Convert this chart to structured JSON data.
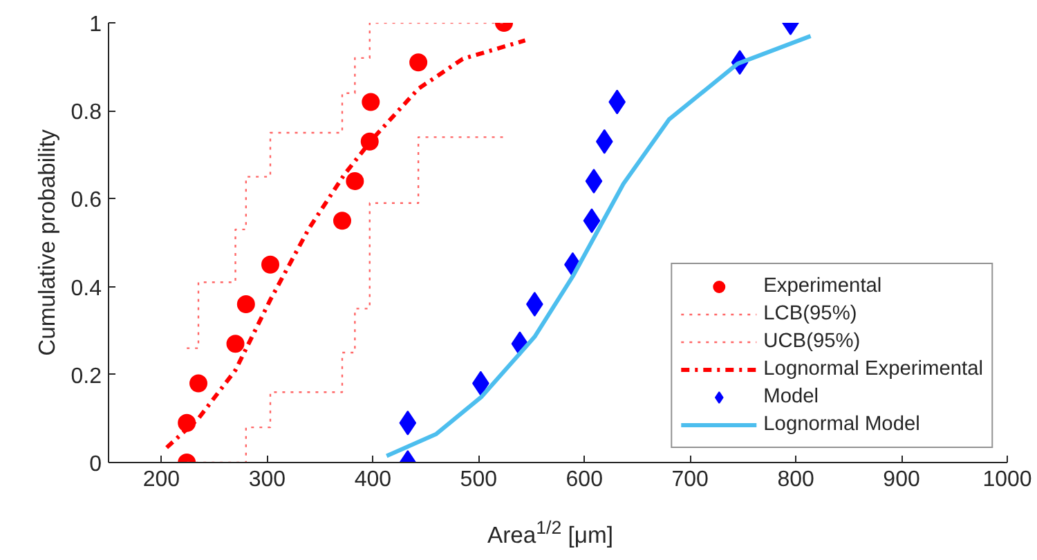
{
  "chart_data": {
    "type": "scatter",
    "xlabel": "Area$^{1/2}$ [μm]",
    "ylabel": "Cumulative probability",
    "xlim": [
      150,
      1000
    ],
    "xticks": [
      200,
      300,
      400,
      500,
      600,
      700,
      800,
      900,
      1000
    ],
    "ylim": [
      0,
      1
    ],
    "yticks": [
      0,
      0.2,
      0.4,
      0.6,
      0.8,
      1
    ],
    "grid": false,
    "legend": "bottom right",
    "series": [
      {
        "name": "Experimental",
        "marker": "circle",
        "color": "#ff0000",
        "x": [
          224,
          224,
          235,
          270,
          280,
          303,
          371,
          383,
          397,
          398,
          443,
          524
        ],
        "values": [
          0,
          0.09,
          0.18,
          0.27,
          0.36,
          0.45,
          0.55,
          0.64,
          0.73,
          0.82,
          0.91,
          1
        ]
      },
      {
        "name": "LCB(95%)",
        "type": "step",
        "line_style": "dotted",
        "color": "#ff6666",
        "x": [
          224,
          280,
          303,
          371,
          383,
          397,
          443,
          524
        ],
        "values": [
          0,
          0.08,
          0.16,
          0.25,
          0.35,
          0.59,
          0.74,
          0.74
        ]
      },
      {
        "name": "UCB(95%)",
        "type": "step",
        "line_style": "dotted",
        "color": "#ff6666",
        "x": [
          224,
          235,
          270,
          280,
          303,
          371,
          383,
          397,
          524
        ],
        "values": [
          0.26,
          0.41,
          0.53,
          0.65,
          0.75,
          0.84,
          0.92,
          1,
          1
        ]
      },
      {
        "name": "Lognormal Experimental",
        "type": "line",
        "line_style": "dashdot",
        "color": "#ff0000",
        "x": [
          205,
          235,
          270,
          303,
          339,
          373,
          399,
          443,
          485,
          544
        ],
        "values": [
          0.034,
          0.1,
          0.21,
          0.37,
          0.53,
          0.655,
          0.734,
          0.85,
          0.918,
          0.96
        ]
      },
      {
        "name": "Model",
        "marker": "diamond",
        "color": "#0000ff",
        "x": [
          433,
          433,
          502,
          539,
          553,
          589,
          607,
          609,
          619,
          631,
          747,
          795
        ],
        "values": [
          0,
          0.09,
          0.18,
          0.27,
          0.36,
          0.45,
          0.55,
          0.64,
          0.73,
          0.82,
          0.91,
          1
        ]
      },
      {
        "name": "Lognormal Model",
        "type": "line",
        "line_style": "solid",
        "color": "#4dbeee",
        "x": [
          413,
          460,
          503,
          553,
          589,
          637,
          680,
          745,
          814
        ],
        "values": [
          0.015,
          0.065,
          0.15,
          0.286,
          0.423,
          0.634,
          0.78,
          0.907,
          0.97
        ]
      }
    ]
  }
}
